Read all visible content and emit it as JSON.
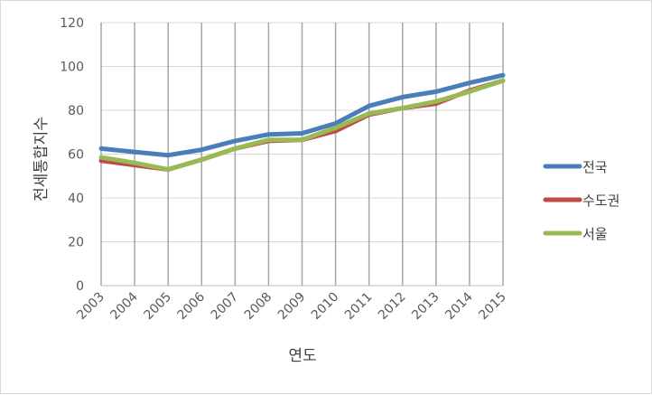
{
  "chart_data": {
    "type": "line",
    "title": "",
    "xlabel": "연도",
    "ylabel": "전세통합지수",
    "ylim": [
      0,
      120
    ],
    "yticks": [
      0,
      20,
      40,
      60,
      80,
      100,
      120
    ],
    "categories": [
      "2003",
      "2004",
      "2005",
      "2006",
      "2007",
      "2008",
      "2009",
      "2010",
      "2011",
      "2012",
      "2013",
      "2014",
      "2015"
    ],
    "grid": "horizontal and vertical",
    "legend_position": "right",
    "series": [
      {
        "name": "전국",
        "color": "#4a7ebb",
        "values": [
          62.5,
          61,
          59.5,
          62,
          66,
          69,
          69.5,
          74,
          82,
          86,
          88.5,
          92.5,
          96
        ]
      },
      {
        "name": "수도권",
        "color": "#be4b48",
        "values": [
          57,
          55,
          53,
          57.5,
          62.5,
          66,
          66.5,
          70.5,
          78,
          81,
          83,
          89,
          93.5
        ]
      },
      {
        "name": "서울",
        "color": "#98b954",
        "values": [
          58.5,
          56,
          53,
          57.5,
          62.5,
          66.5,
          66.5,
          72,
          78.5,
          81,
          84,
          88.5,
          93.5
        ]
      }
    ]
  }
}
